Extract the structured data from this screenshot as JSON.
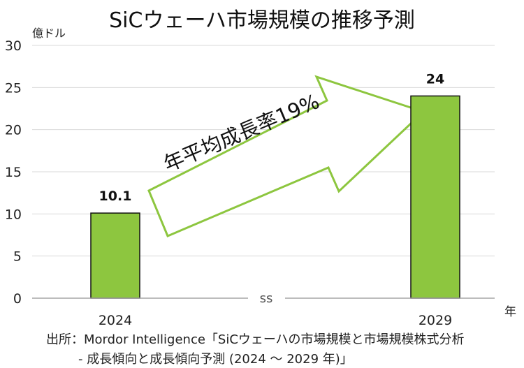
{
  "chart_data": {
    "type": "bar",
    "title": "SiCウェーハ市場規模の推移予測",
    "ylabel": "億ドル",
    "xlabel": "年",
    "ylim": [
      0,
      30
    ],
    "yticks": [
      0,
      5,
      10,
      15,
      20,
      25,
      30
    ],
    "categories": [
      "2024",
      "2029"
    ],
    "values": [
      10.1,
      24
    ],
    "data_labels": [
      "10.1",
      "24"
    ],
    "bar_color": "#8dc63f",
    "grid": true,
    "axis_break": "ss",
    "annotation": "年平均成長率19%",
    "arrow_fill": "#ffffff",
    "arrow_stroke": "#8dc63f"
  },
  "source": {
    "line1": "出所：Mordor Intelligence「SiCウェーハの市場規模と市場規模株式分析",
    "line2": "- 成長傾向と成長傾向予測 (2024 ～ 2029 年)」"
  }
}
